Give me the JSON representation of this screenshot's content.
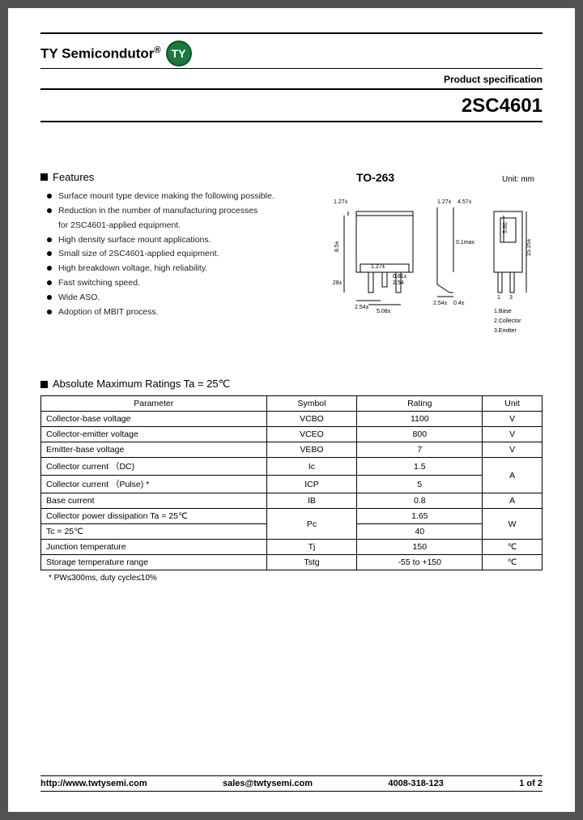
{
  "brand": {
    "name": "TY Semicondutor",
    "logo_text": "TY",
    "logo_bg": "#1a7a3e"
  },
  "header": {
    "spec_label": "Product specification",
    "part_number": "2SC4601"
  },
  "features": {
    "title": "Features",
    "items": [
      "Surface mount type device making the following possible.",
      "Reduction in the number of manufacturing processes",
      "for 2SC4601-applied equipment.",
      "High density surface mount applications.",
      "Small size of 2SC4601-applied equipment.",
      "High breakdown voltage, high reliability.",
      "Fast switching speed.",
      "Wide ASO.",
      "Adoption of MBIT process."
    ],
    "sub_index": 2
  },
  "diagram": {
    "package": "TO-263",
    "unit": "Unit: mm",
    "dims": {
      "d1": "1.27±",
      "d2": "1.27±",
      "d3": "4.57±",
      "d4": "8.5±",
      "d5": "5.28±",
      "d6": "2.54±",
      "d7": "5.08±",
      "d8": "1.27±",
      "d9": "0.1max",
      "d10": "2.54",
      "d11": "0.81±",
      "d12": "2.54±",
      "d13": "0.4±",
      "d14": "15.25±",
      "d15": "5.60"
    },
    "pins": [
      "1.Base",
      "2.Collector",
      "3.Emitter"
    ]
  },
  "ratings": {
    "title": "Absolute Maximum Ratings Ta = 25℃",
    "columns": [
      "Parameter",
      "Symbol",
      "Rating",
      "Unit"
    ],
    "rows": [
      {
        "param": "Collector-base voltage",
        "symbol": "VCBO",
        "rating": "1100",
        "unit": "V"
      },
      {
        "param": "Collector-emitter voltage",
        "symbol": "VCEO",
        "rating": "800",
        "unit": "V"
      },
      {
        "param": "Emitter-base voltage",
        "symbol": "VEBO",
        "rating": "7",
        "unit": "V"
      },
      {
        "param": "Collector current （DC)",
        "symbol": "Ic",
        "rating": "1.5",
        "unit": "A",
        "merge_unit": true
      },
      {
        "param": "Collector current （Pulse) *",
        "symbol": "ICP",
        "rating": "5",
        "unit": ""
      },
      {
        "param": "Base current",
        "symbol": "IB",
        "rating": "0.8",
        "unit": "A"
      },
      {
        "param": "Collector power dissipation    Ta = 25℃",
        "symbol": "Pc",
        "rating": "1.65",
        "unit": "W",
        "merge_sym": true,
        "merge_unit": true
      },
      {
        "param": "                                                Tc = 25℃",
        "symbol": "",
        "rating": "40",
        "unit": ""
      },
      {
        "param": "Junction temperature",
        "symbol": "Tj",
        "rating": "150",
        "unit": "℃"
      },
      {
        "param": "Storage temperature range",
        "symbol": "Tstg",
        "rating": "-55 to +150",
        "unit": "℃"
      }
    ],
    "footnote": "* PW≤300ms, duty cycle≤10%"
  },
  "footer": {
    "url": "http://www.twtysemi.com",
    "email": "sales@twtysemi.com",
    "phone": "4008-318-123",
    "page": "1 of 2"
  }
}
